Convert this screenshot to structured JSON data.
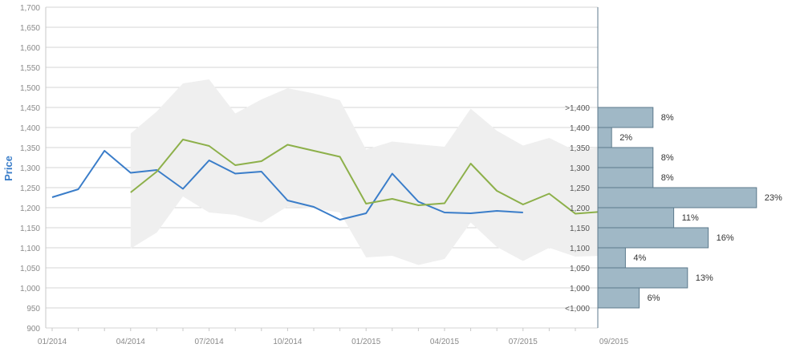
{
  "chart_data": {
    "type": "line",
    "ylabel": "Price",
    "ylim": [
      900,
      1700
    ],
    "yticks": [
      "900",
      "950",
      "1,000",
      "1,050",
      "1,100",
      "1,150",
      "1,200",
      "1,250",
      "1,300",
      "1,350",
      "1,400",
      "1,450",
      "1,500",
      "1,550",
      "1,600",
      "1,650",
      "1,700"
    ],
    "xticks": [
      "01/2014",
      "04/2014",
      "07/2014",
      "10/2014",
      "01/2015",
      "04/2015",
      "07/2015",
      "09/2015"
    ],
    "grid": true,
    "colors": {
      "actual": "#3a7dc9",
      "forecast": "#8db04a",
      "band": "#efefef",
      "hist": "#a0b8c6",
      "hist_border": "#5d7a8c"
    },
    "months": [
      "2014-01",
      "2014-02",
      "2014-03",
      "2014-04",
      "2014-05",
      "2014-06",
      "2014-07",
      "2014-08",
      "2014-09",
      "2014-10",
      "2014-11",
      "2014-12",
      "2015-01",
      "2015-02",
      "2015-03",
      "2015-04",
      "2015-05",
      "2015-06",
      "2015-07",
      "2015-08",
      "2015-09"
    ],
    "series": [
      {
        "key": "actual",
        "start": "2014-01",
        "values": [
          1226,
          1246,
          1342,
          1287,
          1294,
          1247,
          1318,
          1285,
          1290,
          1218,
          1202,
          1170,
          1186,
          1285,
          1215,
          1188,
          1186,
          1192,
          1188
        ]
      },
      {
        "key": "forecast",
        "start": "2014-04",
        "values": [
          1238,
          1290,
          1370,
          1354,
          1306,
          1316,
          1357,
          1342,
          1327,
          1210,
          1222,
          1206,
          1211,
          1310,
          1242,
          1208,
          1235,
          1185,
          1190
        ]
      }
    ],
    "band": {
      "start": "2014-04",
      "upper": [
        1385,
        1440,
        1510,
        1520,
        1435,
        1470,
        1498,
        1485,
        1468,
        1345,
        1365,
        1358,
        1352,
        1447,
        1392,
        1355,
        1374,
        1342,
        1350
      ],
      "lower": [
        1098,
        1138,
        1228,
        1188,
        1182,
        1163,
        1203,
        1198,
        1188,
        1076,
        1080,
        1057,
        1072,
        1163,
        1102,
        1067,
        1100,
        1078,
        1080
      ]
    },
    "histogram": {
      "bins": [
        ">1,400",
        "1,400",
        "1,350",
        "1,300",
        "1,250",
        "1,200",
        "1,150",
        "1,100",
        "1,050",
        "1,000",
        "<1,000"
      ],
      "percents": [
        8,
        2,
        8,
        8,
        23,
        11,
        16,
        4,
        13,
        6
      ],
      "labels": [
        "8%",
        "2%",
        "8%",
        "8%",
        "23%",
        "11%",
        "16%",
        "4%",
        "13%",
        "6%"
      ]
    }
  }
}
